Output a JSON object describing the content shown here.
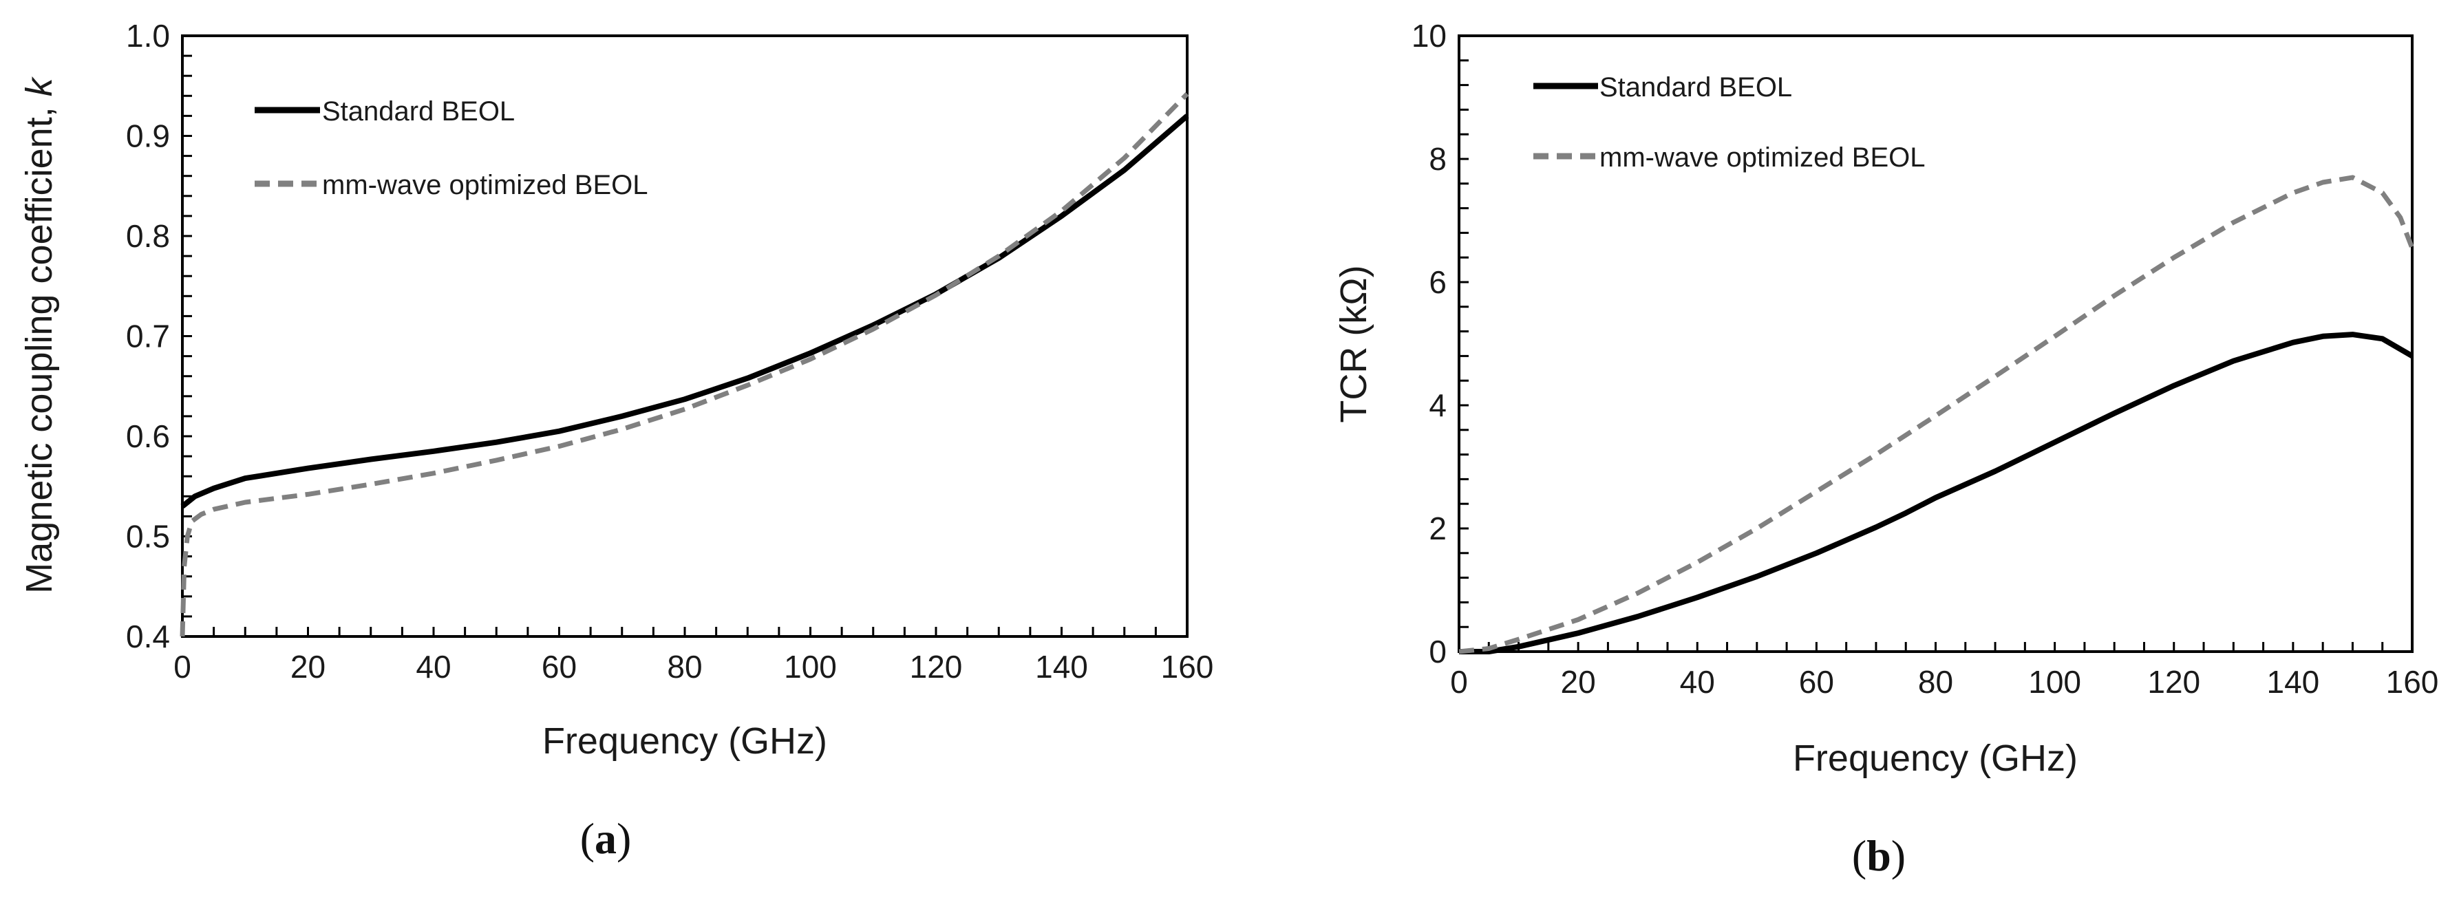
{
  "chart_data": [
    {
      "panel": "a",
      "caption": {
        "open": "(",
        "letter": "a",
        "close": ")"
      },
      "type": "line",
      "xlabel": "Frequency (GHz)",
      "ylabel": "Magnetic coupling coefficient, ",
      "ylabel_symbol": "k",
      "xlim": [
        0,
        160
      ],
      "ylim": [
        0.4,
        1.0
      ],
      "x_ticks": [
        0,
        20,
        40,
        60,
        80,
        100,
        120,
        140,
        160
      ],
      "x_tick_labels": [
        "0",
        "20",
        "40",
        "60",
        "80",
        "100",
        "120",
        "140",
        "160"
      ],
      "y_ticks": [
        0.4,
        0.5,
        0.6,
        0.7,
        0.8,
        0.9,
        1.0
      ],
      "y_tick_labels": [
        "0.4",
        "0.5",
        "0.6",
        "0.7",
        "0.8",
        "0.9",
        "1.0"
      ],
      "grid": false,
      "legend_position": "top-left",
      "series": [
        {
          "name": "Standard BEOL",
          "color": "#000000",
          "dash": "solid",
          "x": [
            0,
            1,
            2,
            5,
            10,
            20,
            30,
            40,
            50,
            60,
            70,
            80,
            90,
            100,
            110,
            120,
            130,
            140,
            150,
            160
          ],
          "y": [
            0.53,
            0.535,
            0.54,
            0.548,
            0.558,
            0.568,
            0.577,
            0.585,
            0.594,
            0.605,
            0.62,
            0.637,
            0.658,
            0.683,
            0.711,
            0.742,
            0.778,
            0.82,
            0.866,
            0.92
          ]
        },
        {
          "name": "mm-wave optimized BEOL",
          "color": "#808080",
          "dash": "dashed",
          "x": [
            0,
            0.3,
            0.8,
            1.5,
            3,
            5,
            10,
            20,
            30,
            40,
            50,
            60,
            70,
            80,
            90,
            100,
            110,
            120,
            130,
            140,
            150,
            160
          ],
          "y": [
            0.4,
            0.47,
            0.5,
            0.515,
            0.522,
            0.527,
            0.534,
            0.542,
            0.552,
            0.563,
            0.576,
            0.59,
            0.607,
            0.627,
            0.651,
            0.677,
            0.707,
            0.741,
            0.78,
            0.825,
            0.878,
            0.942
          ]
        }
      ]
    },
    {
      "panel": "b",
      "caption": {
        "open": "(",
        "letter": "b",
        "close": ")"
      },
      "type": "line",
      "xlabel": "Frequency (GHz)",
      "ylabel": "TCR (kΩ)",
      "xlim": [
        0,
        160
      ],
      "ylim": [
        0,
        10
      ],
      "x_ticks": [
        0,
        20,
        40,
        60,
        80,
        100,
        120,
        140,
        160
      ],
      "x_tick_labels": [
        "0",
        "20",
        "40",
        "60",
        "80",
        "100",
        "120",
        "140",
        "160"
      ],
      "y_ticks": [
        0,
        2,
        4,
        6,
        8,
        10
      ],
      "y_tick_labels": [
        "0",
        "2",
        "4",
        "6",
        "8",
        "10"
      ],
      "grid": false,
      "legend_position": "top-left",
      "series": [
        {
          "name": "Standard BEOL",
          "color": "#000000",
          "dash": "solid",
          "x": [
            0,
            5,
            10,
            20,
            30,
            40,
            50,
            60,
            70,
            75,
            80,
            90,
            100,
            110,
            120,
            130,
            140,
            145,
            150,
            155,
            160
          ],
          "y": [
            0,
            -0.02,
            0.08,
            0.3,
            0.57,
            0.88,
            1.22,
            1.6,
            2.02,
            2.25,
            2.5,
            2.93,
            3.4,
            3.87,
            4.32,
            4.72,
            5.02,
            5.12,
            5.15,
            5.08,
            4.8
          ]
        },
        {
          "name": "mm-wave optimized BEOL",
          "color": "#808080",
          "dash": "dashed",
          "x": [
            0,
            5,
            10,
            20,
            30,
            40,
            50,
            60,
            70,
            80,
            90,
            100,
            110,
            120,
            130,
            140,
            145,
            150,
            155,
            158,
            160
          ],
          "y": [
            0,
            0.05,
            0.2,
            0.52,
            0.95,
            1.45,
            2.0,
            2.6,
            3.2,
            3.83,
            4.47,
            5.12,
            5.78,
            6.4,
            6.97,
            7.45,
            7.62,
            7.7,
            7.45,
            7.05,
            6.55
          ]
        }
      ]
    }
  ]
}
